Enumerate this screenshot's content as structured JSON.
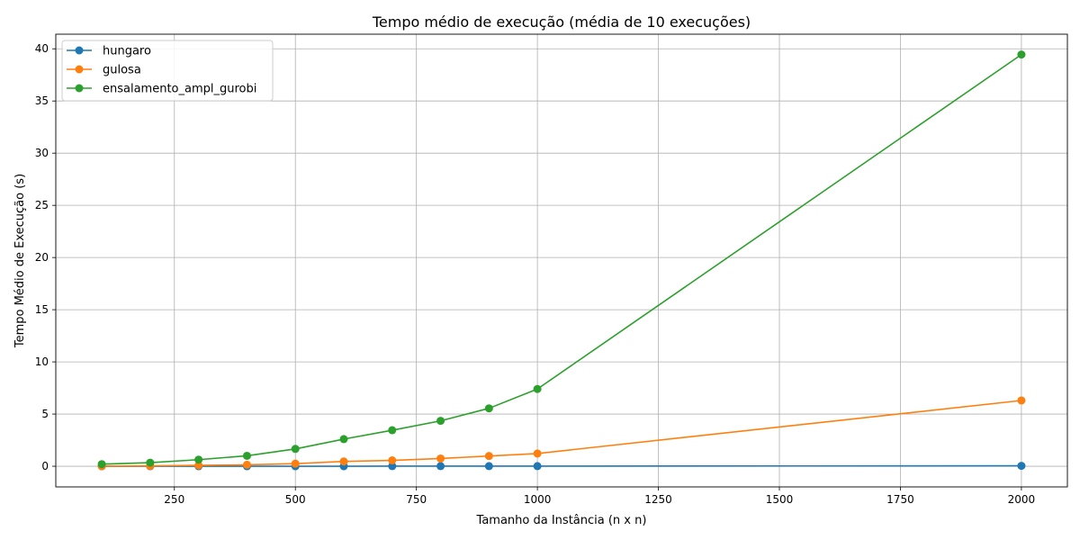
{
  "chart_data": {
    "type": "line",
    "title": "Tempo médio de execução (média de 10 execuções)",
    "xlabel": "Tamanho da Instância (n x n)",
    "ylabel": "Tempo Médio de Execução (s)",
    "xlim": [
      5,
      2095
    ],
    "ylim": [
      -1.98,
      41.4
    ],
    "xticks": [
      250,
      500,
      750,
      1000,
      1250,
      1500,
      1750,
      2000
    ],
    "xtick_labels": [
      "250",
      "500",
      "750",
      "1000",
      "1250",
      "1500",
      "1750",
      "2000"
    ],
    "yticks": [
      0,
      5,
      10,
      15,
      20,
      25,
      30,
      35,
      40
    ],
    "ytick_labels": [
      "0",
      "5",
      "10",
      "15",
      "20",
      "25",
      "30",
      "35",
      "40"
    ],
    "grid": true,
    "legend_position": "upper-left",
    "x": [
      100,
      200,
      300,
      400,
      500,
      600,
      700,
      800,
      900,
      1000,
      2000
    ],
    "series": [
      {
        "name": "hungaro",
        "color": "#1f77b4",
        "values": [
          0.0,
          0.0,
          0.0,
          0.0,
          0.0,
          0.0,
          0.01,
          0.01,
          0.01,
          0.01,
          0.04
        ]
      },
      {
        "name": "gulosa",
        "color": "#ff7f0e",
        "values": [
          0.0,
          0.03,
          0.08,
          0.14,
          0.25,
          0.46,
          0.56,
          0.74,
          0.98,
          1.22,
          6.3
        ]
      },
      {
        "name": "ensalamento_ampl_gurobi",
        "color": "#2ca02c",
        "values": [
          0.2,
          0.34,
          0.63,
          1.0,
          1.66,
          2.6,
          3.45,
          4.35,
          5.55,
          7.4,
          39.45
        ]
      }
    ]
  }
}
